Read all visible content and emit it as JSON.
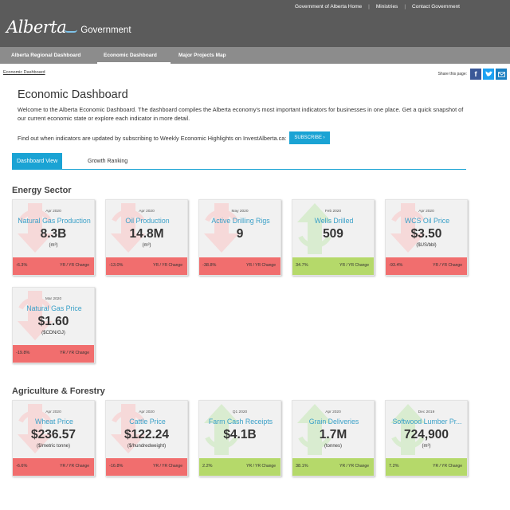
{
  "header": {
    "top_links": [
      "Government of Alberta Home",
      "Ministries",
      "Contact Government"
    ],
    "logo_script": "Alberta",
    "logo_gov": "Government"
  },
  "nav": {
    "items": [
      "Alberta Regional Dashboard",
      "Economic Dashboard",
      "Major Projects Map"
    ]
  },
  "breadcrumb": "Economic Dashboard",
  "share": {
    "label": "Share this page:"
  },
  "page": {
    "title": "Economic Dashboard",
    "intro": "Welcome to the Alberta Economic Dashboard. The dashboard compiles the Alberta economy's most important indicators for businesses in one place. Get a quick snapshot of our current economic state or explore each indicator in more detail.",
    "subscribe_text": "Find out when indicators are updated by subscribing to Weekly Economic Highlights on InvestAlberta.ca:",
    "subscribe_button": "SUBSCRIBE ›"
  },
  "tabs": [
    "Dashboard View",
    "Growth Ranking"
  ],
  "colors": {
    "accent": "#1aa3d4",
    "negative": "#f16e6e",
    "positive": "#b5d96a",
    "header": "#5b5b5b",
    "nav": "#8c8c8c"
  },
  "sections": [
    {
      "title": "Energy Sector",
      "cards": [
        {
          "date": "Apr 2020",
          "name": "Natural Gas Production",
          "value": "8.3B",
          "unit": "(m³)",
          "change": "-6.3%",
          "change_label": "YR / YR Change",
          "direction": "down"
        },
        {
          "date": "Apr 2020",
          "name": "Oil Production",
          "value": "14.8M",
          "unit": "(m³)",
          "change": "-13.0%",
          "change_label": "YR / YR Change",
          "direction": "down"
        },
        {
          "date": "May 2020",
          "name": "Active Drilling Rigs",
          "value": "9",
          "unit": "",
          "change": "-38.8%",
          "change_label": "YR / YR Change",
          "direction": "down"
        },
        {
          "date": "Feb 2020",
          "name": "Wells Drilled",
          "value": "509",
          "unit": "",
          "change": "34.7%",
          "change_label": "YR / YR Change",
          "direction": "up"
        },
        {
          "date": "Apr 2020",
          "name": "WCS Oil Price",
          "value": "$3.50",
          "unit": "($US/bbl)",
          "change": "-93.4%",
          "change_label": "YR / YR Change",
          "direction": "down"
        },
        {
          "date": "Mar 2020",
          "name": "Natural Gas Price",
          "value": "$1.60",
          "unit": "($CDN/GJ)",
          "change": "-19.8%",
          "change_label": "YR / YR Change",
          "direction": "down"
        }
      ]
    },
    {
      "title": "Agriculture & Forestry",
      "cards": [
        {
          "date": "Apr 2020",
          "name": "Wheat Price",
          "value": "$236.57",
          "unit": "($/metric tonne)",
          "change": "-6.6%",
          "change_label": "YR / YR Change",
          "direction": "down"
        },
        {
          "date": "Apr 2020",
          "name": "Cattle Price",
          "value": "$122.24",
          "unit": "($/hundredweight)",
          "change": "-16.8%",
          "change_label": "YR / YR Change",
          "direction": "down"
        },
        {
          "date": "Q1 2020",
          "name": "Farm Cash Receipts",
          "value": "$4.1B",
          "unit": "",
          "change": "2.2%",
          "change_label": "YR / YR Change",
          "direction": "up"
        },
        {
          "date": "Apr 2020",
          "name": "Grain Deliveries",
          "value": "1.7M",
          "unit": "(tonnes)",
          "change": "38.1%",
          "change_label": "YR / YR Change",
          "direction": "up"
        },
        {
          "date": "Dec 2019",
          "name": "Softwood Lumber Pr...",
          "value": "724,900",
          "unit": "(m³)",
          "change": "7.2%",
          "change_label": "YR / YR Change",
          "direction": "up"
        }
      ]
    }
  ]
}
